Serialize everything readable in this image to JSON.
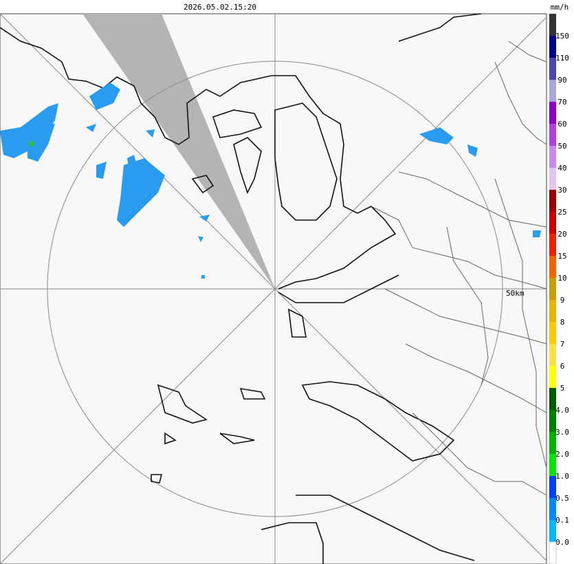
{
  "header": {
    "timestamp": "2026.05.02.15:20",
    "unit": "mm/h"
  },
  "map": {
    "ring_label": "50km"
  },
  "legend": {
    "items": [
      {
        "label": "150",
        "color": "#333333"
      },
      {
        "label": "110",
        "color": "#000090"
      },
      {
        "label": "90",
        "color": "#4848b0"
      },
      {
        "label": "70",
        "color": "#a8a8dc"
      },
      {
        "label": "60",
        "color": "#9000d0"
      },
      {
        "label": "50",
        "color": "#b040e8"
      },
      {
        "label": "40",
        "color": "#c888f0"
      },
      {
        "label": "30",
        "color": "#e0c4f8"
      },
      {
        "label": "25",
        "color": "#a00000"
      },
      {
        "label": "20",
        "color": "#d00000"
      },
      {
        "label": "15",
        "color": "#f02000"
      },
      {
        "label": "10",
        "color": "#ff6000"
      },
      {
        "label": "9",
        "color": "#c8a000"
      },
      {
        "label": "8",
        "color": "#e8b400"
      },
      {
        "label": "7",
        "color": "#ffc800"
      },
      {
        "label": "6",
        "color": "#ffe040"
      },
      {
        "label": "5",
        "color": "#ffff00"
      },
      {
        "label": "4.0",
        "color": "#005a00"
      },
      {
        "label": "3.0",
        "color": "#008000"
      },
      {
        "label": "2.0",
        "color": "#00b400"
      },
      {
        "label": "1.0",
        "color": "#00e800"
      },
      {
        "label": "0.5",
        "color": "#0040ff"
      },
      {
        "label": "0.1",
        "color": "#0088ff"
      },
      {
        "label": "0.0",
        "color": "#00b8ff"
      }
    ]
  }
}
